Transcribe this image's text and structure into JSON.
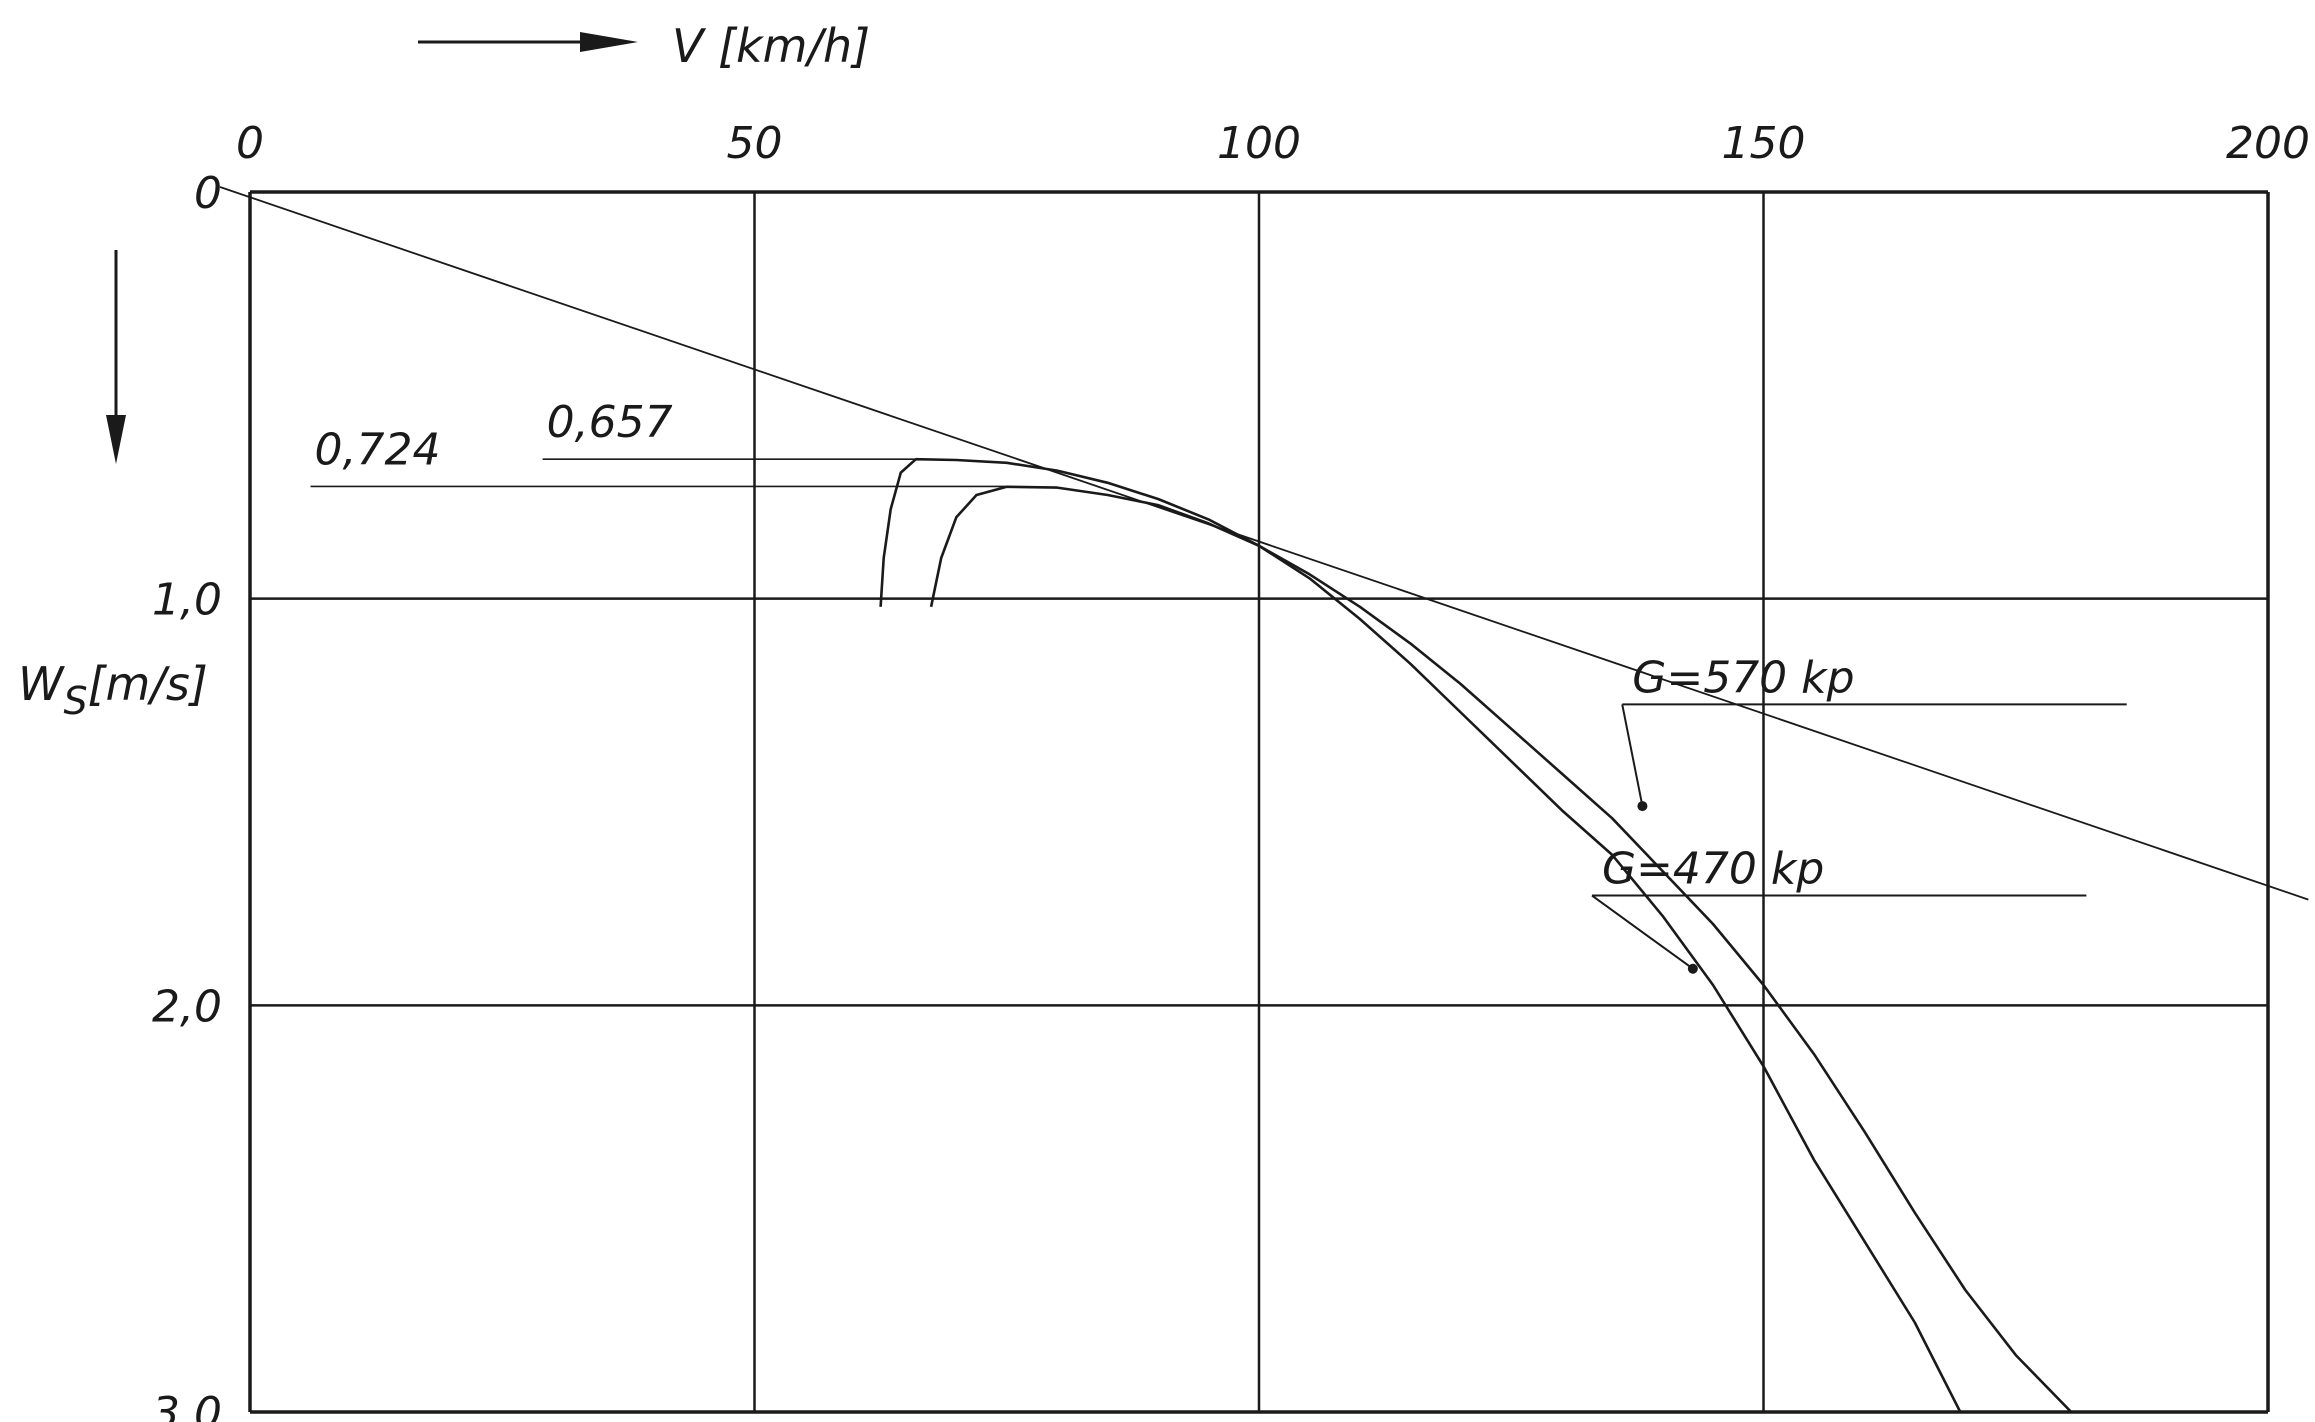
{
  "chart_data": {
    "type": "line",
    "title": "",
    "xlabel": "V [km/h]",
    "ylabel_main": "W",
    "ylabel_sub": "S",
    "ylabel_unit": "[m/s]",
    "x_ticks": [
      0,
      50,
      100,
      150,
      200
    ],
    "x_tick_labels": [
      "0",
      "50",
      "100",
      "150",
      "200"
    ],
    "y_ticks": [
      0,
      1,
      2,
      3
    ],
    "y_tick_labels": [
      "0",
      "1,0",
      "2,0",
      "3,0"
    ],
    "xlim": [
      0,
      200
    ],
    "ylim": [
      0,
      3
    ],
    "y_inverted": true,
    "x_axis_position": "top",
    "grid": true,
    "colors": {
      "ink": "#1a1a1a",
      "background": "#ffffff"
    },
    "series": [
      {
        "name": "G=570 kp",
        "points": [
          [
            62.5,
            1.02
          ],
          [
            62.8,
            0.9
          ],
          [
            63.5,
            0.78
          ],
          [
            64.5,
            0.69
          ],
          [
            66,
            0.657
          ],
          [
            70,
            0.659
          ],
          [
            75,
            0.666
          ],
          [
            80,
            0.685
          ],
          [
            85,
            0.715
          ],
          [
            90,
            0.755
          ],
          [
            95,
            0.805
          ],
          [
            100,
            0.87
          ],
          [
            105,
            0.95
          ],
          [
            110,
            1.05
          ],
          [
            115,
            1.16
          ],
          [
            120,
            1.28
          ],
          [
            125,
            1.4
          ],
          [
            130,
            1.52
          ],
          [
            135,
            1.63
          ],
          [
            140,
            1.78
          ],
          [
            145,
            1.95
          ],
          [
            150,
            2.15
          ],
          [
            155,
            2.38
          ],
          [
            160,
            2.58
          ],
          [
            165,
            2.78
          ],
          [
            169.5,
            3.0
          ]
        ]
      },
      {
        "name": "G=470 kp",
        "points": [
          [
            67.5,
            1.02
          ],
          [
            68.5,
            0.9
          ],
          [
            70,
            0.8
          ],
          [
            72,
            0.745
          ],
          [
            75,
            0.725
          ],
          [
            80,
            0.727
          ],
          [
            85,
            0.745
          ],
          [
            90,
            0.77
          ],
          [
            95,
            0.815
          ],
          [
            100,
            0.87
          ],
          [
            105,
            0.94
          ],
          [
            110,
            1.02
          ],
          [
            115,
            1.11
          ],
          [
            120,
            1.21
          ],
          [
            125,
            1.32
          ],
          [
            130,
            1.43
          ],
          [
            135,
            1.54
          ],
          [
            140,
            1.67
          ],
          [
            145,
            1.8
          ],
          [
            150,
            1.95
          ],
          [
            155,
            2.12
          ],
          [
            160,
            2.31
          ],
          [
            165,
            2.51
          ],
          [
            170,
            2.7
          ],
          [
            175,
            2.86
          ],
          [
            180.5,
            3.0
          ]
        ]
      }
    ],
    "tangent_line": {
      "from": [
        0,
        0
      ],
      "to": [
        204,
        1.74
      ]
    },
    "levels": [
      {
        "label": "0,657",
        "y": 0.657,
        "x_start": 29,
        "x_end": 66
      },
      {
        "label": "0,724",
        "y": 0.724,
        "x_start": 6,
        "x_end": 75
      }
    ],
    "annotations": [
      {
        "label": "G=570 kp",
        "target": [
          138,
          1.51
        ],
        "text_at": [
          136,
          1.26
        ],
        "underline_to": [
          186,
          1.26
        ]
      },
      {
        "label": "G=470 kp",
        "target": [
          143,
          1.91
        ],
        "text_at": [
          133,
          1.73
        ],
        "underline_to": [
          182,
          1.73
        ]
      }
    ]
  }
}
